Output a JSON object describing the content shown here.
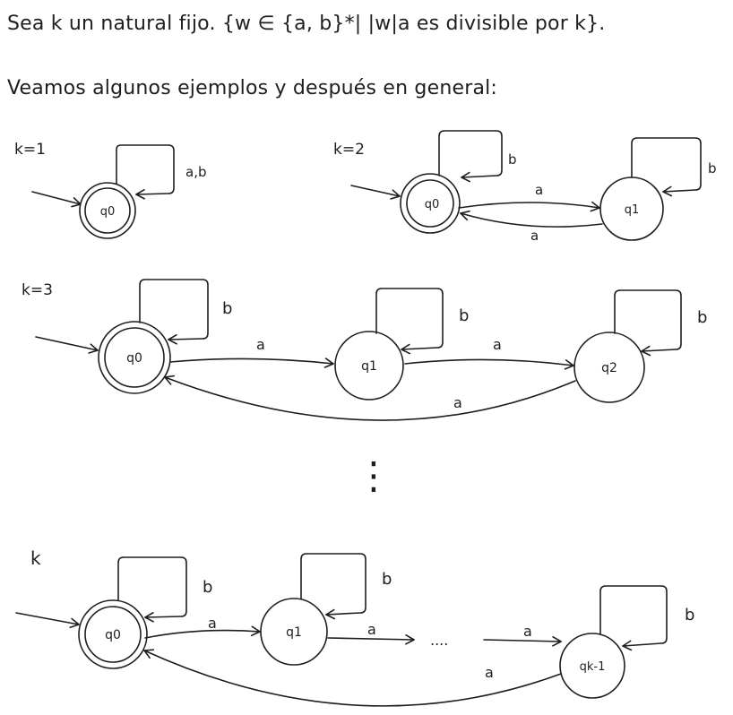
{
  "header": {
    "problem": "Sea k un natural fijo. {w ∈ {a, b}*| |w|a es divisible por k}.",
    "intro": "Veamos algunos ejemplos y después en general:"
  },
  "diagram_k1": {
    "label": "k=1",
    "states": {
      "q0": "q0"
    },
    "edges": {
      "loop_q0": "a,b"
    }
  },
  "diagram_k2": {
    "label": "k=2",
    "states": {
      "q0": "q0",
      "q1": "q1"
    },
    "edges": {
      "loop_q0": "b",
      "loop_q1": "b",
      "q0_q1": "a",
      "q1_q0": "a"
    }
  },
  "diagram_k3": {
    "label": "k=3",
    "states": {
      "q0": "q0",
      "q1": "q1",
      "q2": "q2"
    },
    "edges": {
      "loop_q0": "b",
      "loop_q1": "b",
      "loop_q2": "b",
      "q0_q1": "a",
      "q1_q2": "a",
      "q2_q0": "a"
    }
  },
  "separator": {
    "dots": "⋮"
  },
  "diagram_k": {
    "label": "k",
    "states": {
      "q0": "q0",
      "q1": "q1",
      "qk1": "qk-1"
    },
    "edges": {
      "loop_q0": "b",
      "loop_q1": "b",
      "loop_qk1": "b",
      "q0_q1": "a",
      "q1_dots": "a",
      "dots_qk1": "a",
      "qk1_q0": "a"
    },
    "ellipsis": "...."
  }
}
